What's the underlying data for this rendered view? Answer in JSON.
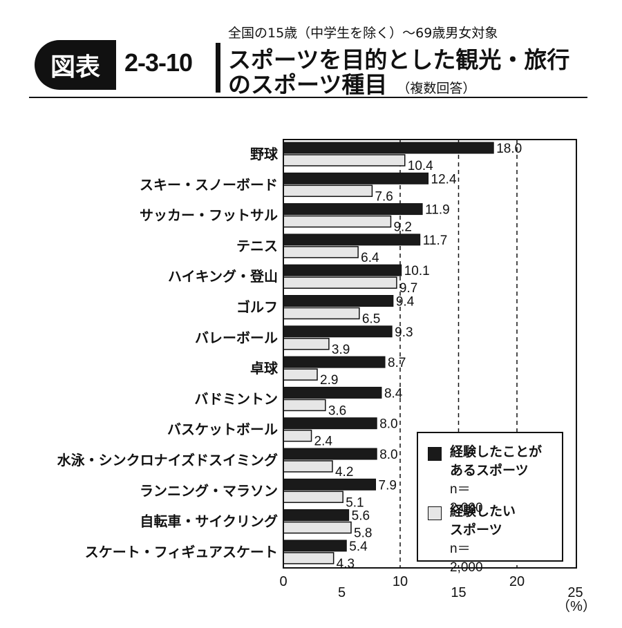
{
  "header": {
    "badge": "図表",
    "figure_number": "2-3-10",
    "subtitle": "全国の15歳（中学生を除く）～69歳男女対象",
    "title_line1": "スポーツを目的とした観光・旅行",
    "title_line2": "のスポーツ種目",
    "title_note": "（複数回答）"
  },
  "colors": {
    "experienced": "#1a1a1a",
    "want": "#e6e6e6",
    "outline": "#111111"
  },
  "legend": {
    "items": [
      {
        "line1": "経験したことが",
        "line2": "あるスポーツ",
        "n": "n＝2,000"
      },
      {
        "line1": "経験したい",
        "line2": "スポーツ",
        "n": "n＝2,000"
      }
    ]
  },
  "chart_data": {
    "type": "bar",
    "orientation": "horizontal",
    "categories": [
      "野球",
      "スキー・スノーボード",
      "サッカー・フットサル",
      "テニス",
      "ハイキング・登山",
      "ゴルフ",
      "バレーボール",
      "卓球",
      "バドミントン",
      "バスケットボール",
      "水泳・シンクロナイズドスイミング",
      "ランニング・マラソン",
      "自転車・サイクリング",
      "スケート・フィギュアスケート"
    ],
    "series": [
      {
        "name": "経験したことがあるスポーツ",
        "values": [
          18.0,
          12.4,
          11.9,
          11.7,
          10.1,
          9.4,
          9.3,
          8.7,
          8.4,
          8.0,
          8.0,
          7.9,
          5.6,
          5.4
        ]
      },
      {
        "name": "経験したいスポーツ",
        "values": [
          10.4,
          7.6,
          9.2,
          6.4,
          9.7,
          6.5,
          3.9,
          2.9,
          3.6,
          2.4,
          4.2,
          5.1,
          5.8,
          4.3
        ]
      }
    ],
    "xlim": [
      0,
      25
    ],
    "xticks": [
      "0",
      "5",
      "10",
      "15",
      "20",
      "25"
    ],
    "x_unit": "（%）",
    "grid": "dashed vertical at 10, 15, 20"
  }
}
